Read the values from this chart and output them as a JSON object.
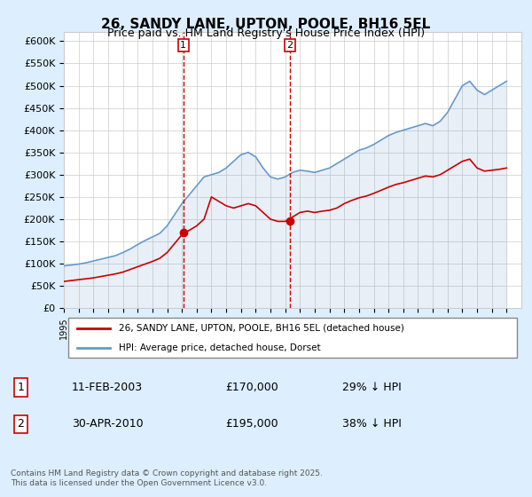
{
  "title": "26, SANDY LANE, UPTON, POOLE, BH16 5EL",
  "subtitle": "Price paid vs. HM Land Registry's House Price Index (HPI)",
  "legend_line1": "26, SANDY LANE, UPTON, POOLE, BH16 5EL (detached house)",
  "legend_line2": "HPI: Average price, detached house, Dorset",
  "red_line_color": "#cc0000",
  "blue_line_color": "#6699cc",
  "background_color": "#ddeeff",
  "plot_bg_color": "#ffffff",
  "ylabel": "",
  "ylim": [
    0,
    620000
  ],
  "yticks": [
    0,
    50000,
    100000,
    150000,
    200000,
    250000,
    300000,
    350000,
    400000,
    450000,
    500000,
    550000,
    600000
  ],
  "ytick_labels": [
    "£0",
    "£50K",
    "£100K",
    "£150K",
    "£200K",
    "£250K",
    "£300K",
    "£350K",
    "£400K",
    "£450K",
    "£500K",
    "£550K",
    "£600K"
  ],
  "marker1_date": 2003.1,
  "marker1_label": "1",
  "marker1_value_red": 170000,
  "marker1_text": "11-FEB-2003",
  "marker1_price": "£170,000",
  "marker1_hpi": "29% ↓ HPI",
  "marker2_date": 2010.33,
  "marker2_label": "2",
  "marker2_value_red": 195000,
  "marker2_text": "30-APR-2010",
  "marker2_price": "£195,000",
  "marker2_hpi": "38% ↓ HPI",
  "footer": "Contains HM Land Registry data © Crown copyright and database right 2025.\nThis data is licensed under the Open Government Licence v3.0.",
  "xmin": 1995,
  "xmax": 2026,
  "hpi_years": [
    1995,
    1995.5,
    1996,
    1996.5,
    1997,
    1997.5,
    1998,
    1998.5,
    1999,
    1999.5,
    2000,
    2000.5,
    2001,
    2001.5,
    2002,
    2002.5,
    2003,
    2003.5,
    2004,
    2004.5,
    2005,
    2005.5,
    2006,
    2006.5,
    2007,
    2007.5,
    2008,
    2008.5,
    2009,
    2009.5,
    2010,
    2010.5,
    2011,
    2011.5,
    2012,
    2012.5,
    2013,
    2013.5,
    2014,
    2014.5,
    2015,
    2015.5,
    2016,
    2016.5,
    2017,
    2017.5,
    2018,
    2018.5,
    2019,
    2019.5,
    2020,
    2020.5,
    2021,
    2021.5,
    2022,
    2022.5,
    2023,
    2023.5,
    2024,
    2024.5,
    2025
  ],
  "hpi_values": [
    95000,
    97000,
    99000,
    102000,
    106000,
    110000,
    114000,
    118000,
    125000,
    133000,
    143000,
    152000,
    160000,
    168000,
    185000,
    210000,
    235000,
    255000,
    275000,
    295000,
    300000,
    305000,
    315000,
    330000,
    345000,
    350000,
    340000,
    315000,
    295000,
    290000,
    295000,
    305000,
    310000,
    308000,
    305000,
    310000,
    315000,
    325000,
    335000,
    345000,
    355000,
    360000,
    368000,
    378000,
    388000,
    395000,
    400000,
    405000,
    410000,
    415000,
    410000,
    420000,
    440000,
    470000,
    500000,
    510000,
    490000,
    480000,
    490000,
    500000,
    510000
  ],
  "red_years": [
    1995,
    1995.5,
    1996,
    1996.5,
    1997,
    1997.5,
    1998,
    1998.5,
    1999,
    1999.5,
    2000,
    2000.5,
    2001,
    2001.5,
    2002,
    2002.5,
    2003,
    2003.5,
    2004,
    2004.5,
    2005,
    2005.5,
    2006,
    2006.5,
    2007,
    2007.5,
    2008,
    2008.5,
    2009,
    2009.5,
    2010,
    2010.5,
    2011,
    2011.5,
    2012,
    2012.5,
    2013,
    2013.5,
    2014,
    2014.5,
    2015,
    2015.5,
    2016,
    2016.5,
    2017,
    2017.5,
    2018,
    2018.5,
    2019,
    2019.5,
    2020,
    2020.5,
    2021,
    2021.5,
    2022,
    2022.5,
    2023,
    2023.5,
    2024,
    2024.5,
    2025
  ],
  "red_values": [
    60000,
    62000,
    64000,
    66000,
    68000,
    71000,
    74000,
    77000,
    81000,
    87000,
    93000,
    99000,
    105000,
    112000,
    125000,
    145000,
    165000,
    175000,
    185000,
    200000,
    250000,
    240000,
    230000,
    225000,
    230000,
    235000,
    230000,
    215000,
    200000,
    195000,
    195000,
    205000,
    215000,
    218000,
    215000,
    218000,
    220000,
    225000,
    235000,
    242000,
    248000,
    252000,
    258000,
    265000,
    272000,
    278000,
    282000,
    287000,
    292000,
    297000,
    295000,
    300000,
    310000,
    320000,
    330000,
    335000,
    315000,
    308000,
    310000,
    312000,
    315000
  ]
}
